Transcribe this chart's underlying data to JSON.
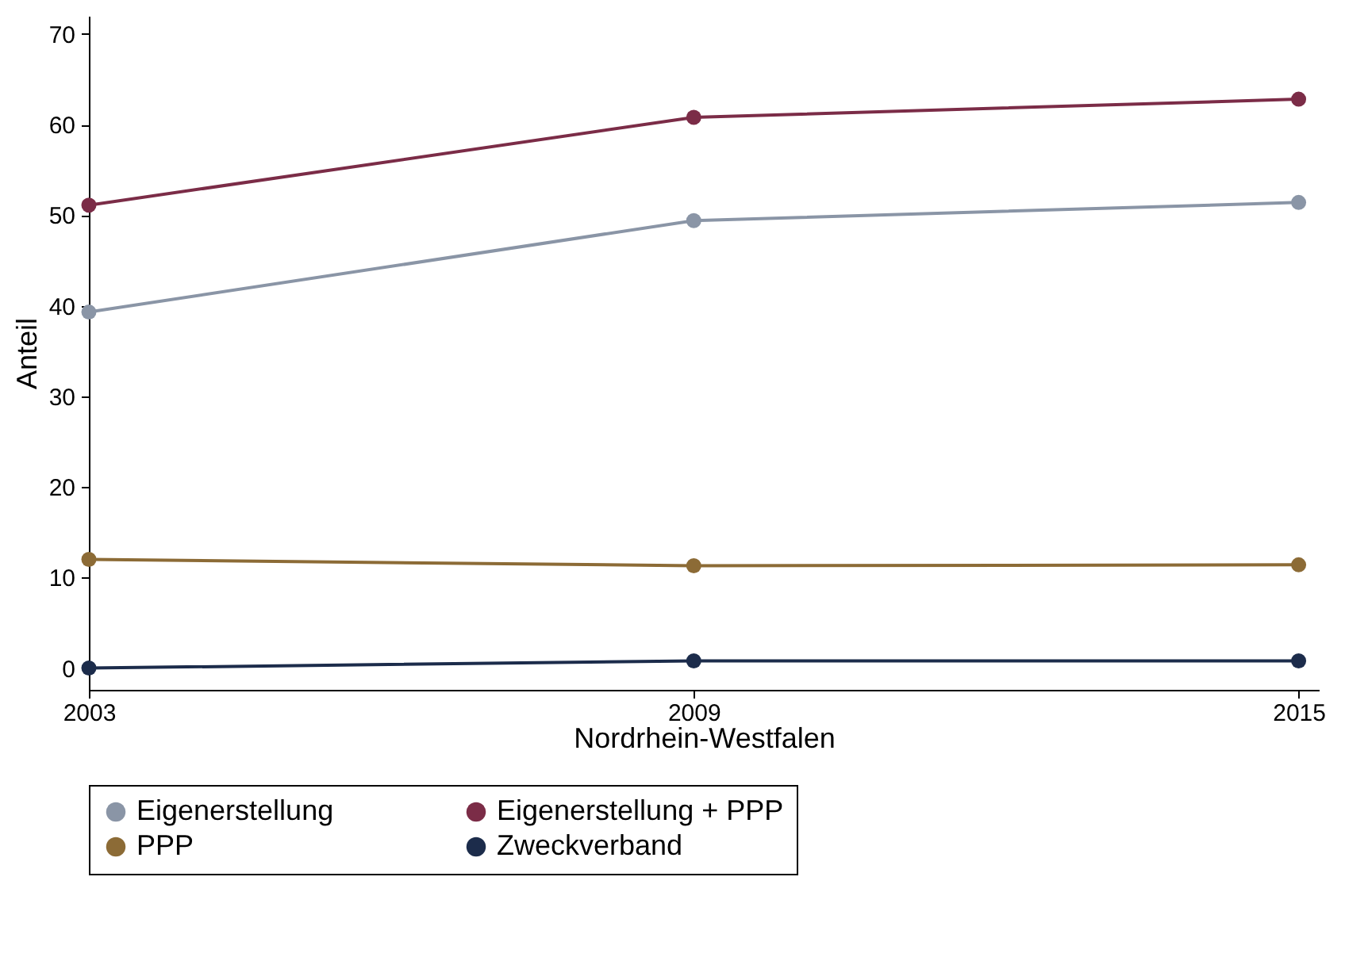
{
  "chart_data": {
    "type": "line",
    "xlabel": "Nordrhein-Westfalen",
    "ylabel": "Anteil",
    "x": [
      2003,
      2009,
      2015
    ],
    "xlim": [
      2003,
      2015.2
    ],
    "xticks": [
      2003,
      2009,
      2015
    ],
    "ylim": [
      -2.4,
      72
    ],
    "yticks": [
      0,
      10,
      20,
      30,
      40,
      50,
      60,
      70
    ],
    "grid": false,
    "legend": "bottom",
    "marker": "circle",
    "line_style": "solid",
    "series": [
      {
        "name": "Eigenerstellung",
        "color": "#8a95a6",
        "values": [
          39.3,
          49.4,
          51.4
        ]
      },
      {
        "name": "Eigenerstellung + PPP",
        "color": "#7b2c47",
        "values": [
          51.1,
          60.8,
          62.8
        ]
      },
      {
        "name": "PPP",
        "color": "#8c6b36",
        "values": [
          12.0,
          11.3,
          11.4
        ]
      },
      {
        "name": "Zweckverband",
        "color": "#1c2c4b",
        "values": [
          0.0,
          0.8,
          0.8
        ]
      }
    ]
  }
}
